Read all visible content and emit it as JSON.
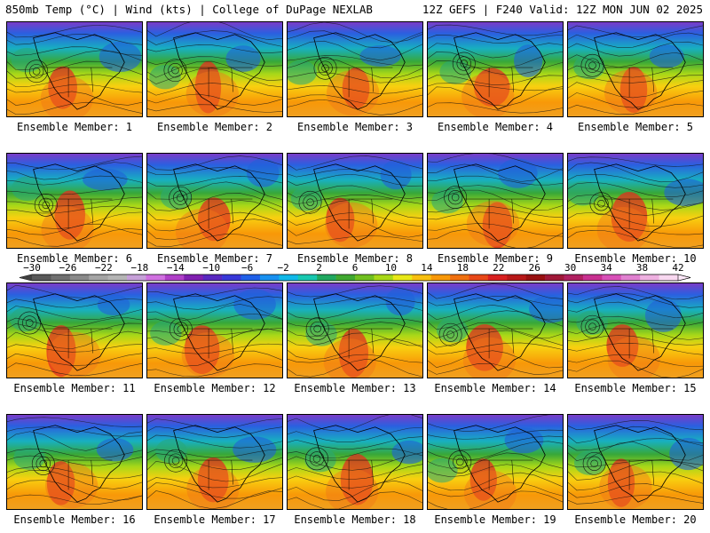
{
  "header": {
    "left_title": "850mb Temp (°C) | Wind (kts) | College of DuPage NEXLAB",
    "right_title": "12Z GEFS | F240 Valid: 12Z MON JUN 02 2025"
  },
  "members": [
    "Ensemble Member: 1",
    "Ensemble Member: 2",
    "Ensemble Member: 3",
    "Ensemble Member: 4",
    "Ensemble Member: 5",
    "Ensemble Member: 6",
    "Ensemble Member: 7",
    "Ensemble Member: 8",
    "Ensemble Member: 9",
    "Ensemble Member: 10",
    "Ensemble Member: 11",
    "Ensemble Member: 12",
    "Ensemble Member: 13",
    "Ensemble Member: 14",
    "Ensemble Member: 15",
    "Ensemble Member: 16",
    "Ensemble Member: 17",
    "Ensemble Member: 18",
    "Ensemble Member: 19",
    "Ensemble Member: 20"
  ],
  "colorbar": {
    "ticks": [
      "−30",
      "−26",
      "−22",
      "−18",
      "−14",
      "−10",
      "−6",
      "−2",
      "2",
      "6",
      "10",
      "14",
      "18",
      "22",
      "26",
      "30",
      "34",
      "38",
      "42"
    ],
    "colors": [
      "#585858",
      "#707070",
      "#8a8a8a",
      "#a4a4a4",
      "#b4b4b4",
      "#c6a0d8",
      "#d070e0",
      "#b040c8",
      "#8020b0",
      "#5828c0",
      "#3838d8",
      "#2060e8",
      "#1890f0",
      "#10b8e8",
      "#18c8b0",
      "#20a860",
      "#40a830",
      "#70c020",
      "#a8d818",
      "#e8e818",
      "#f8c010",
      "#f89808",
      "#f07010",
      "#e84818",
      "#d82020",
      "#b81818",
      "#981010",
      "#a01838",
      "#b02060",
      "#c83090",
      "#d850b8",
      "#e080d0",
      "#eeb0e0",
      "#f8d8f0"
    ]
  }
}
